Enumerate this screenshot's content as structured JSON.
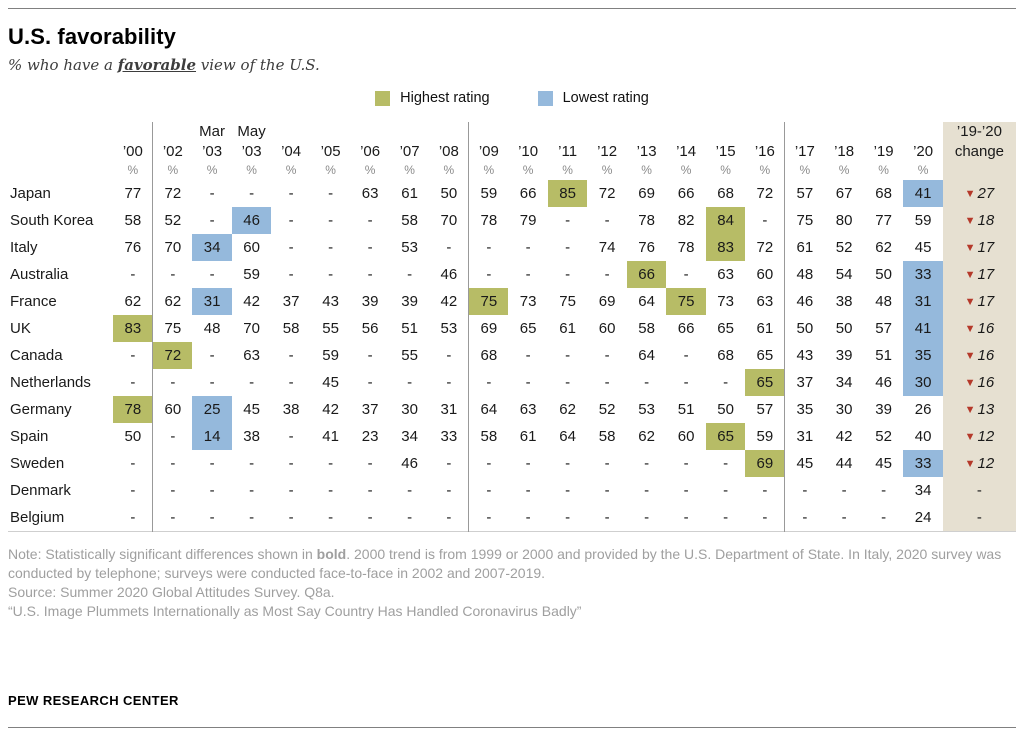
{
  "title": "U.S. favorability",
  "subtitle": {
    "prefix": "% who have a ",
    "emphasis": "favorable",
    "suffix": " view of the U.S."
  },
  "legend": {
    "highest_label": "Highest rating",
    "lowest_label": "Lowest rating"
  },
  "colors": {
    "highest": "#b7bc66",
    "lowest": "#95b9dc",
    "change_bg": "#e6e0d1",
    "arrow_red": "#b5392a",
    "note_gray": "#9f9f9f"
  },
  "chart_data": {
    "type": "table",
    "unit": "%",
    "group_starts": [
      1,
      9,
      17
    ],
    "change_header": {
      "line1": "’19-’20",
      "line2": "change"
    },
    "columns": [
      {
        "year": "’00",
        "top": ""
      },
      {
        "year": "’02",
        "top": ""
      },
      {
        "year": "’03",
        "top": "Mar"
      },
      {
        "year": "’03",
        "top": "May"
      },
      {
        "year": "’04",
        "top": ""
      },
      {
        "year": "’05",
        "top": ""
      },
      {
        "year": "’06",
        "top": ""
      },
      {
        "year": "’07",
        "top": ""
      },
      {
        "year": "’08",
        "top": ""
      },
      {
        "year": "’09",
        "top": ""
      },
      {
        "year": "’10",
        "top": ""
      },
      {
        "year": "’11",
        "top": ""
      },
      {
        "year": "’12",
        "top": ""
      },
      {
        "year": "’13",
        "top": ""
      },
      {
        "year": "’14",
        "top": ""
      },
      {
        "year": "’15",
        "top": ""
      },
      {
        "year": "’16",
        "top": ""
      },
      {
        "year": "’17",
        "top": ""
      },
      {
        "year": "’18",
        "top": ""
      },
      {
        "year": "’19",
        "top": ""
      },
      {
        "year": "’20",
        "top": ""
      }
    ],
    "rows": [
      {
        "country": "Japan",
        "values": [
          "77",
          "72",
          "-",
          "-",
          "-",
          "-",
          "63",
          "61",
          "50",
          "59",
          "66",
          "85",
          "72",
          "69",
          "66",
          "68",
          "72",
          "57",
          "67",
          "68",
          "41"
        ],
        "highlights": {
          "11": "high",
          "20": "low"
        },
        "change": "27"
      },
      {
        "country": "South Korea",
        "values": [
          "58",
          "52",
          "-",
          "46",
          "-",
          "-",
          "-",
          "58",
          "70",
          "78",
          "79",
          "-",
          "-",
          "78",
          "82",
          "84",
          "-",
          "75",
          "80",
          "77",
          "59"
        ],
        "highlights": {
          "3": "low",
          "15": "high"
        },
        "change": "18"
      },
      {
        "country": "Italy",
        "values": [
          "76",
          "70",
          "34",
          "60",
          "-",
          "-",
          "-",
          "53",
          "-",
          "-",
          "-",
          "-",
          "74",
          "76",
          "78",
          "83",
          "72",
          "61",
          "52",
          "62",
          "45"
        ],
        "highlights": {
          "2": "low",
          "15": "high"
        },
        "change": "17"
      },
      {
        "country": "Australia",
        "values": [
          "-",
          "-",
          "-",
          "59",
          "-",
          "-",
          "-",
          "-",
          "46",
          "-",
          "-",
          "-",
          "-",
          "66",
          "-",
          "63",
          "60",
          "48",
          "54",
          "50",
          "33"
        ],
        "highlights": {
          "13": "high",
          "20": "low"
        },
        "change": "17"
      },
      {
        "country": "France",
        "values": [
          "62",
          "62",
          "31",
          "42",
          "37",
          "43",
          "39",
          "39",
          "42",
          "75",
          "73",
          "75",
          "69",
          "64",
          "75",
          "73",
          "63",
          "46",
          "38",
          "48",
          "31"
        ],
        "highlights": {
          "2": "low",
          "9": "high",
          "14": "high",
          "20": "low"
        },
        "change": "17"
      },
      {
        "country": "UK",
        "values": [
          "83",
          "75",
          "48",
          "70",
          "58",
          "55",
          "56",
          "51",
          "53",
          "69",
          "65",
          "61",
          "60",
          "58",
          "66",
          "65",
          "61",
          "50",
          "50",
          "57",
          "41"
        ],
        "highlights": {
          "0": "high",
          "20": "low"
        },
        "change": "16"
      },
      {
        "country": "Canada",
        "values": [
          "-",
          "72",
          "-",
          "63",
          "-",
          "59",
          "-",
          "55",
          "-",
          "68",
          "-",
          "-",
          "-",
          "64",
          "-",
          "68",
          "65",
          "43",
          "39",
          "51",
          "35"
        ],
        "highlights": {
          "1": "high",
          "20": "low"
        },
        "change": "16"
      },
      {
        "country": "Netherlands",
        "values": [
          "-",
          "-",
          "-",
          "-",
          "-",
          "45",
          "-",
          "-",
          "-",
          "-",
          "-",
          "-",
          "-",
          "-",
          "-",
          "-",
          "65",
          "37",
          "34",
          "46",
          "30"
        ],
        "highlights": {
          "16": "high",
          "20": "low"
        },
        "change": "16"
      },
      {
        "country": "Germany",
        "values": [
          "78",
          "60",
          "25",
          "45",
          "38",
          "42",
          "37",
          "30",
          "31",
          "64",
          "63",
          "62",
          "52",
          "53",
          "51",
          "50",
          "57",
          "35",
          "30",
          "39",
          "26"
        ],
        "highlights": {
          "0": "high",
          "2": "low"
        },
        "change": "13"
      },
      {
        "country": "Spain",
        "values": [
          "50",
          "-",
          "14",
          "38",
          "-",
          "41",
          "23",
          "34",
          "33",
          "58",
          "61",
          "64",
          "58",
          "62",
          "60",
          "65",
          "59",
          "31",
          "42",
          "52",
          "40"
        ],
        "highlights": {
          "2": "low",
          "15": "high"
        },
        "change": "12"
      },
      {
        "country": "Sweden",
        "values": [
          "-",
          "-",
          "-",
          "-",
          "-",
          "-",
          "-",
          "46",
          "-",
          "-",
          "-",
          "-",
          "-",
          "-",
          "-",
          "-",
          "69",
          "45",
          "44",
          "45",
          "33"
        ],
        "highlights": {
          "16": "high",
          "20": "low"
        },
        "change": "12"
      },
      {
        "country": "Denmark",
        "values": [
          "-",
          "-",
          "-",
          "-",
          "-",
          "-",
          "-",
          "-",
          "-",
          "-",
          "-",
          "-",
          "-",
          "-",
          "-",
          "-",
          "-",
          "-",
          "-",
          "-",
          "34"
        ],
        "highlights": {},
        "change": "-"
      },
      {
        "country": "Belgium",
        "values": [
          "-",
          "-",
          "-",
          "-",
          "-",
          "-",
          "-",
          "-",
          "-",
          "-",
          "-",
          "-",
          "-",
          "-",
          "-",
          "-",
          "-",
          "-",
          "-",
          "-",
          "24"
        ],
        "highlights": {},
        "change": "-"
      }
    ]
  },
  "notes": {
    "note_prefix": "Note: Statistically significant differences shown in ",
    "note_bold": "bold",
    "note_suffix": ". 2000 trend is from 1999 or 2000 and provided by the U.S. Department of State. In Italy, 2020 survey was conducted by telephone; surveys were conducted face-to-face in 2002 and 2007-2019.",
    "source": "Source: Summer 2020 Global Attitudes Survey. Q8a.",
    "quote": "“U.S. Image Plummets Internationally as Most Say Country Has Handled Coronavirus Badly”"
  },
  "footer": "PEW RESEARCH CENTER"
}
